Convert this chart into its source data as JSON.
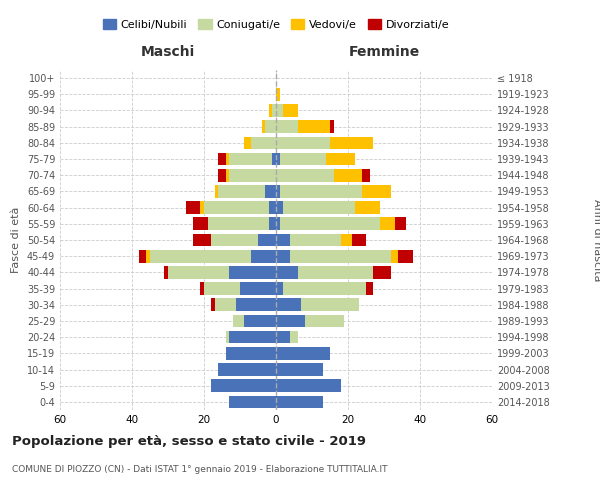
{
  "age_groups": [
    "0-4",
    "5-9",
    "10-14",
    "15-19",
    "20-24",
    "25-29",
    "30-34",
    "35-39",
    "40-44",
    "45-49",
    "50-54",
    "55-59",
    "60-64",
    "65-69",
    "70-74",
    "75-79",
    "80-84",
    "85-89",
    "90-94",
    "95-99",
    "100+"
  ],
  "birth_years": [
    "2014-2018",
    "2009-2013",
    "2004-2008",
    "1999-2003",
    "1994-1998",
    "1989-1993",
    "1984-1988",
    "1979-1983",
    "1974-1978",
    "1969-1973",
    "1964-1968",
    "1959-1963",
    "1954-1958",
    "1949-1953",
    "1944-1948",
    "1939-1943",
    "1934-1938",
    "1929-1933",
    "1924-1928",
    "1919-1923",
    "≤ 1918"
  ],
  "maschi": {
    "celibi": [
      13,
      18,
      16,
      14,
      13,
      9,
      11,
      10,
      13,
      7,
      5,
      2,
      2,
      3,
      0,
      1,
      0,
      0,
      0,
      0,
      0
    ],
    "coniugati": [
      0,
      0,
      0,
      0,
      1,
      3,
      6,
      10,
      17,
      28,
      13,
      17,
      18,
      13,
      13,
      12,
      7,
      3,
      1,
      0,
      0
    ],
    "vedovi": [
      0,
      0,
      0,
      0,
      0,
      0,
      0,
      0,
      0,
      1,
      0,
      0,
      1,
      1,
      1,
      1,
      2,
      1,
      1,
      0,
      0
    ],
    "divorziati": [
      0,
      0,
      0,
      0,
      0,
      0,
      1,
      1,
      1,
      2,
      5,
      4,
      4,
      0,
      2,
      2,
      0,
      0,
      0,
      0,
      0
    ]
  },
  "femmine": {
    "nubili": [
      13,
      18,
      13,
      15,
      4,
      8,
      7,
      2,
      6,
      4,
      4,
      1,
      2,
      1,
      0,
      1,
      0,
      0,
      0,
      0,
      0
    ],
    "coniugate": [
      0,
      0,
      0,
      0,
      2,
      11,
      16,
      23,
      21,
      28,
      14,
      28,
      20,
      23,
      16,
      13,
      15,
      6,
      2,
      0,
      0
    ],
    "vedove": [
      0,
      0,
      0,
      0,
      0,
      0,
      0,
      0,
      0,
      2,
      3,
      4,
      7,
      8,
      8,
      8,
      12,
      9,
      4,
      1,
      0
    ],
    "divorziate": [
      0,
      0,
      0,
      0,
      0,
      0,
      0,
      2,
      5,
      4,
      4,
      3,
      0,
      0,
      2,
      0,
      0,
      1,
      0,
      0,
      0
    ]
  },
  "colors": {
    "celibi_nubili": "#4a72b8",
    "coniugati": "#c5d9a0",
    "vedovi": "#ffc000",
    "divorziati": "#c00000"
  },
  "xlim": 60,
  "title": "Popolazione per età, sesso e stato civile - 2019",
  "subtitle": "COMUNE DI PIOZZO (CN) - Dati ISTAT 1° gennaio 2019 - Elaborazione TUTTITALIA.IT",
  "xlabel_left": "Maschi",
  "xlabel_right": "Femmine",
  "ylabel_left": "Fasce di età",
  "ylabel_right": "Anni di nascita",
  "legend_labels": [
    "Celibi/Nubili",
    "Coniugati/e",
    "Vedovi/e",
    "Divorziati/e"
  ],
  "background_color": "#ffffff",
  "grid_color": "#cccccc"
}
